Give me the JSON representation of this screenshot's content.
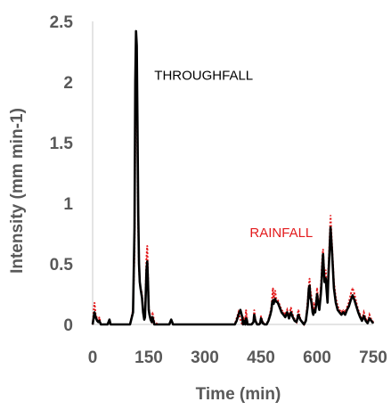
{
  "chart_data": {
    "type": "line",
    "title": "",
    "xlabel": "Time (min)",
    "ylabel": "Intensity (mm min-1)",
    "xlim": [
      0,
      750
    ],
    "ylim": [
      0,
      2.5
    ],
    "x_ticks": [
      "0",
      "150",
      "300",
      "450",
      "600",
      "750"
    ],
    "y_ticks": [
      "0",
      "0.5",
      "1",
      "1.5",
      "2",
      "2.5"
    ],
    "grid": false,
    "legend": "none",
    "series": [
      {
        "name": "RAINFALL",
        "color": "#e31a1c",
        "style": "dotted",
        "x": [
          0,
          5,
          8,
          12,
          15,
          18,
          22,
          30,
          40,
          45,
          48,
          55,
          60,
          100,
          108,
          112,
          114,
          116,
          118,
          120,
          122,
          124,
          126,
          128,
          130,
          132,
          135,
          138,
          140,
          142,
          144,
          146,
          148,
          150,
          152,
          155,
          158,
          160,
          165,
          175,
          205,
          210,
          215,
          220,
          300,
          380,
          385,
          390,
          395,
          400,
          402,
          404,
          406,
          408,
          410,
          412,
          414,
          418,
          425,
          430,
          432,
          435,
          440,
          445,
          448,
          450,
          455,
          460,
          465,
          470,
          475,
          478,
          480,
          482,
          484,
          486,
          488,
          490,
          495,
          500,
          505,
          510,
          515,
          520,
          525,
          530,
          535,
          540,
          545,
          550,
          555,
          560,
          565,
          570,
          575,
          578,
          580,
          582,
          584,
          586,
          588,
          590,
          592,
          595,
          598,
          600,
          603,
          606,
          610,
          612,
          614,
          616,
          618,
          620,
          623,
          625,
          628,
          630,
          633,
          636,
          640,
          645,
          650,
          655,
          660,
          665,
          670,
          675,
          680,
          685,
          690,
          695,
          700,
          705,
          710,
          715,
          720,
          725,
          730,
          735,
          740,
          745,
          750
        ],
        "values": [
          0,
          0.18,
          0.08,
          0.05,
          0.03,
          0.06,
          0.0,
          0.0,
          0.0,
          0.04,
          0.0,
          0.0,
          0.0,
          0.0,
          0.12,
          0.6,
          1.6,
          2.3,
          2.2,
          1.4,
          0.8,
          0.45,
          0.35,
          0.3,
          0.28,
          0.25,
          0.12,
          0.05,
          0.08,
          0.3,
          0.55,
          0.65,
          0.4,
          0.15,
          0.1,
          0.05,
          0.03,
          0.1,
          0.02,
          0.0,
          0.0,
          0.03,
          0.0,
          0.0,
          0.0,
          0.0,
          0.05,
          0.1,
          0.04,
          0.0,
          0.0,
          0.06,
          0.02,
          0.0,
          0.12,
          0.07,
          0.02,
          0.0,
          0.0,
          0.03,
          0.12,
          0.04,
          0.0,
          0.0,
          0.02,
          0.07,
          0.02,
          0.0,
          0.0,
          0.04,
          0.1,
          0.15,
          0.22,
          0.3,
          0.2,
          0.24,
          0.28,
          0.22,
          0.2,
          0.16,
          0.12,
          0.1,
          0.08,
          0.12,
          0.06,
          0.14,
          0.08,
          0.04,
          0.02,
          0.12,
          0.05,
          0.02,
          0.0,
          0.04,
          0.2,
          0.32,
          0.38,
          0.28,
          0.25,
          0.2,
          0.14,
          0.1,
          0.18,
          0.12,
          0.22,
          0.3,
          0.2,
          0.15,
          0.3,
          0.42,
          0.55,
          0.62,
          0.5,
          0.4,
          0.45,
          0.35,
          0.22,
          0.45,
          0.65,
          0.9,
          0.65,
          0.35,
          0.22,
          0.15,
          0.12,
          0.1,
          0.12,
          0.1,
          0.14,
          0.18,
          0.25,
          0.3,
          0.25,
          0.18,
          0.12,
          0.08,
          0.04,
          0.1,
          0.05,
          0.02,
          0.08,
          0.04,
          0.02
        ]
      },
      {
        "name": "THROUGHFALL",
        "color": "#000000",
        "style": "solid",
        "x": [
          0,
          5,
          8,
          12,
          15,
          18,
          22,
          30,
          40,
          45,
          48,
          55,
          60,
          100,
          108,
          112,
          114,
          116,
          118,
          120,
          122,
          124,
          126,
          128,
          130,
          132,
          135,
          138,
          140,
          142,
          144,
          146,
          148,
          150,
          152,
          155,
          158,
          160,
          165,
          175,
          205,
          210,
          215,
          220,
          300,
          380,
          385,
          390,
          395,
          400,
          402,
          404,
          406,
          408,
          410,
          412,
          414,
          418,
          425,
          430,
          432,
          435,
          440,
          445,
          448,
          450,
          455,
          460,
          465,
          470,
          475,
          478,
          480,
          482,
          484,
          486,
          488,
          490,
          495,
          500,
          505,
          510,
          515,
          520,
          525,
          530,
          535,
          540,
          545,
          550,
          555,
          560,
          565,
          570,
          575,
          578,
          580,
          582,
          584,
          586,
          588,
          590,
          592,
          595,
          598,
          600,
          603,
          606,
          610,
          612,
          614,
          616,
          618,
          620,
          623,
          625,
          628,
          630,
          633,
          636,
          640,
          645,
          650,
          655,
          660,
          665,
          670,
          675,
          680,
          685,
          690,
          695,
          700,
          705,
          710,
          715,
          720,
          725,
          730,
          735,
          740,
          745,
          750
        ],
        "values": [
          0,
          0.1,
          0.06,
          0.03,
          0.02,
          0.03,
          0.0,
          0.0,
          0.0,
          0.04,
          0.0,
          0.0,
          0.0,
          0.0,
          0.1,
          0.8,
          2.0,
          2.42,
          2.3,
          1.6,
          0.9,
          0.5,
          0.35,
          0.3,
          0.26,
          0.22,
          0.1,
          0.04,
          0.06,
          0.25,
          0.45,
          0.52,
          0.35,
          0.12,
          0.08,
          0.04,
          0.02,
          0.06,
          0.0,
          0.0,
          0.0,
          0.04,
          0.0,
          0.0,
          0.0,
          0.0,
          0.03,
          0.08,
          0.12,
          0.06,
          0.0,
          0.03,
          0.01,
          0.0,
          0.05,
          0.04,
          0.0,
          0.0,
          0.0,
          0.02,
          0.08,
          0.03,
          0.0,
          0.0,
          0.01,
          0.05,
          0.01,
          0.0,
          0.0,
          0.03,
          0.08,
          0.12,
          0.18,
          0.2,
          0.17,
          0.2,
          0.21,
          0.19,
          0.18,
          0.14,
          0.1,
          0.08,
          0.06,
          0.1,
          0.05,
          0.1,
          0.06,
          0.03,
          0.02,
          0.08,
          0.04,
          0.02,
          0.0,
          0.03,
          0.15,
          0.3,
          0.32,
          0.22,
          0.2,
          0.16,
          0.1,
          0.08,
          0.12,
          0.1,
          0.18,
          0.25,
          0.17,
          0.12,
          0.25,
          0.35,
          0.48,
          0.58,
          0.45,
          0.35,
          0.38,
          0.3,
          0.18,
          0.38,
          0.58,
          0.8,
          0.6,
          0.3,
          0.18,
          0.12,
          0.1,
          0.08,
          0.1,
          0.08,
          0.12,
          0.15,
          0.2,
          0.24,
          0.2,
          0.15,
          0.1,
          0.06,
          0.03,
          0.07,
          0.03,
          0.01,
          0.05,
          0.03,
          0.01
        ]
      }
    ],
    "annotations": [
      {
        "text": "THROUGHFALL",
        "color": "#000000",
        "x": 165,
        "y": 2.02
      },
      {
        "text": "RAINFALL",
        "color": "#e31a1c",
        "x": 420,
        "y": 0.72
      }
    ]
  }
}
